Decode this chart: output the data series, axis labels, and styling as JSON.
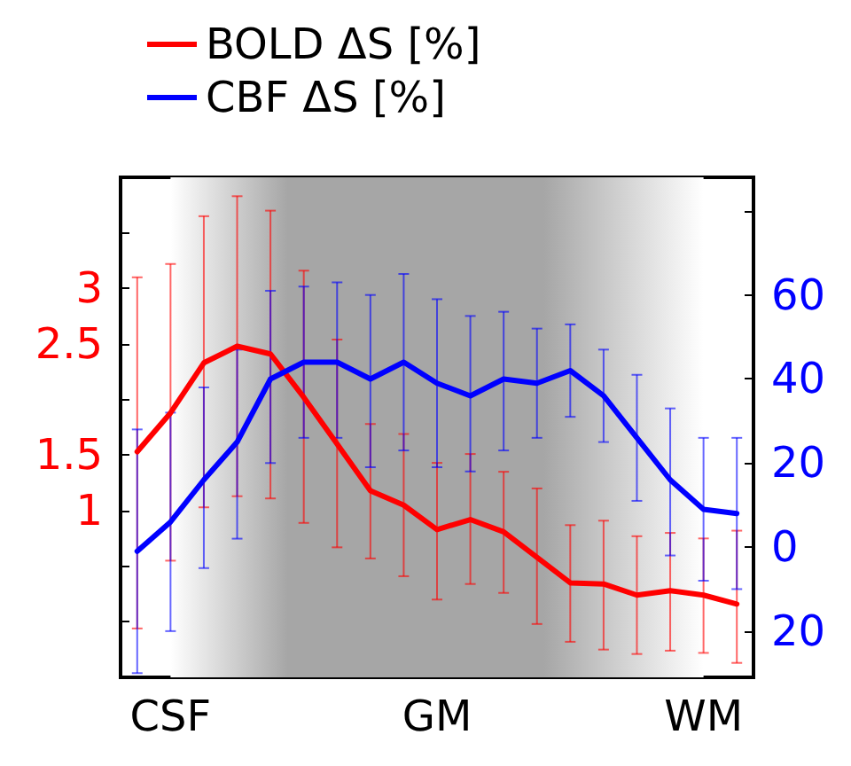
{
  "chart_data": {
    "type": "line",
    "categories": [
      null,
      "CSF",
      null,
      null,
      null,
      null,
      null,
      null,
      null,
      "GM",
      null,
      null,
      null,
      null,
      null,
      null,
      null,
      "WM",
      null
    ],
    "series": [
      {
        "name": "BOLD ΔS [%]",
        "color": "#ff0000",
        "values": [
          1.53,
          1.88,
          2.33,
          2.48,
          2.41,
          2.02,
          1.6,
          1.18,
          1.05,
          0.83,
          0.92,
          0.81,
          0.58,
          0.35,
          0.34,
          0.24,
          0.28,
          0.24,
          0.16
        ],
        "errors": [
          [
            -0.06,
            3.1
          ],
          [
            0.55,
            3.22
          ],
          [
            1.03,
            3.65
          ],
          [
            1.13,
            3.83
          ],
          [
            1.11,
            3.7
          ],
          [
            0.89,
            3.16
          ],
          [
            0.67,
            2.54
          ],
          [
            0.57,
            1.78
          ],
          [
            0.41,
            1.69
          ],
          [
            0.2,
            1.43
          ],
          [
            0.34,
            1.51
          ],
          [
            0.26,
            1.35
          ],
          [
            -0.02,
            1.2
          ],
          [
            -0.18,
            0.87
          ],
          [
            -0.25,
            0.91
          ],
          [
            -0.29,
            0.77
          ],
          [
            -0.26,
            0.8
          ],
          [
            -0.28,
            0.75
          ],
          [
            -0.37,
            0.82
          ]
        ]
      },
      {
        "name": "CBF ΔS [%]",
        "color": "#0000ff",
        "axis": "y2",
        "values": [
          -1,
          6,
          16,
          25,
          40,
          44,
          44,
          40,
          44,
          39,
          36,
          40,
          39,
          42,
          36,
          26,
          16,
          9,
          8
        ],
        "errors": [
          [
            -30,
            28
          ],
          [
            -20,
            32
          ],
          [
            -5,
            38
          ],
          [
            2,
            47
          ],
          [
            20,
            61
          ],
          [
            26,
            62
          ],
          [
            26,
            63
          ],
          [
            19,
            60
          ],
          [
            23,
            65
          ],
          [
            19,
            59
          ],
          [
            18,
            55
          ],
          [
            23,
            56
          ],
          [
            26,
            52
          ],
          [
            31,
            53
          ],
          [
            25,
            47
          ],
          [
            11,
            41
          ],
          [
            -2,
            33
          ],
          [
            -8,
            26
          ],
          [
            -10,
            26
          ]
        ]
      }
    ],
    "ylim": [
      -0.5,
      4
    ],
    "yticks": [
      {
        "value": 0,
        "label": null
      },
      {
        "value": 0.5,
        "label": null
      },
      1,
      1.5,
      {
        "value": 2,
        "label": null
      },
      2.5,
      3,
      {
        "value": 3.5,
        "label": null
      }
    ],
    "y2lim": [
      -31,
      88
    ],
    "y2ticks": [
      {
        "value": -20,
        "label": "20"
      },
      0,
      20,
      40,
      60,
      {
        "value": 80,
        "label": null
      }
    ],
    "bands": [
      {
        "axis": "x",
        "from": "CSF",
        "to": "WM",
        "color": "#a6a6a6"
      }
    ],
    "legend": "top left",
    "grid": false,
    "marker": "none",
    "line_style": "solid"
  }
}
